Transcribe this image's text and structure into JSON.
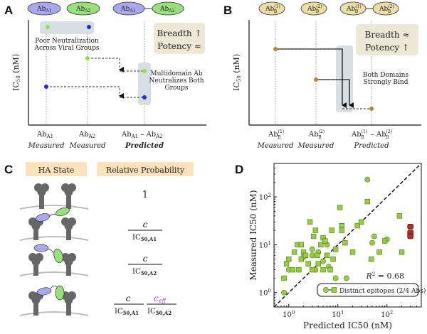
{
  "panel_labels": {
    "a": "A",
    "b": "B",
    "c": "C",
    "d": "D"
  },
  "panel_a": {
    "top_ab1": "Ab",
    "top_ab1_sub": "A1",
    "top_ab2": "Ab",
    "top_ab2_sub": "A2",
    "top_ab3a": "Ab",
    "top_ab3a_sub": "A1",
    "top_ab3b": "Ab",
    "top_ab3b_sub": "A2",
    "ylabel_main": "IC",
    "ylabel_sub": "50",
    "ylabel_unit": " (nM)",
    "box_title": "Breadth ↑",
    "box_sub": "Potency ≈",
    "note1_l1": "Poor Neutralization",
    "note1_l2": "Across Viral Groups",
    "note2_l1": "Multidomain Ab",
    "note2_l2": "Neutralizes Both",
    "note2_l3": "Groups",
    "x1": "Ab",
    "x1_sub": "A1",
    "x1_cap": "Measured",
    "x2": "Ab",
    "x2_sub": "A2",
    "x2_cap": "Measured",
    "x3a": "Ab",
    "x3a_sub": "A1",
    "x3_dash": " – ",
    "x3b": "Ab",
    "x3b_sub": "A2",
    "x3_cap": "Predicted"
  },
  "panel_b": {
    "top_ab1": "Ab",
    "top_ab1_sup": "(1)",
    "top_ab1_sub": "B",
    "top_ab2": "Ab",
    "top_ab2_sup": "(2)",
    "top_ab2_sub": "B",
    "top_ab3a": "Ab",
    "top_ab3a_sup": "(1)",
    "top_ab3a_sub": "B",
    "top_ab3b": "Ab",
    "top_ab3b_sup": "(2)",
    "top_ab3b_sub": "B",
    "ylabel_main": "IC",
    "ylabel_sub": "50",
    "ylabel_unit": " (nM)",
    "box_title": "Breadth ≈",
    "box_sub": "Potency ↑",
    "note_l1": "Both Domains",
    "note_l2": "Strongly Bind",
    "x1": "Ab",
    "x1_sup": "(1)",
    "x1_sub": "B",
    "x1_cap": "Measured",
    "x2": "Ab",
    "x2_sup": "(2)",
    "x2_sub": "B",
    "x2_cap": "Measured",
    "x3a": "Ab",
    "x3a_sup": "(1)",
    "x3a_sub": "B",
    "x3_dash": " – ",
    "x3b": "Ab",
    "x3b_sup": "(2)",
    "x3b_sub": "B",
    "x3_cap": "Predicted"
  },
  "panel_c": {
    "col1_header": "HA State",
    "col2_header": "Relative Probability",
    "row1": "1",
    "row2_num": "c",
    "row2_den": "IC",
    "row2_den_sub": "50,A1",
    "row3_num": "c",
    "row3_den": "IC",
    "row3_den_sub": "50,A2",
    "row4_num1": "c",
    "row4_den1": "IC",
    "row4_den1_sub": "50,A1",
    "row4_num2": "c",
    "row4_num2_sub": "eff",
    "row4_den2": "IC",
    "row4_den2_sub": "50,A2"
  },
  "colors": {
    "blue_ab": "#a9a8ef",
    "green_ab": "#98e07a",
    "yellow_ab": "#ecdfa6",
    "gray_box": "#d8dfe2",
    "tan_box": "#ede8d6",
    "header_bg": "#fbe2bd",
    "blue_dot": "#2a2ad0",
    "green_dot": "#8ee04c",
    "gold_dot": "#b8872a",
    "scatter_green": "#98cc44",
    "scatter_red": "#b52a24",
    "purple": "#b03ad8"
  },
  "chart_data": {
    "type": "scatter",
    "xlabel": "Predicted IC50 (nM)",
    "ylabel": "Measured IC50 (nM)",
    "xscale": "log",
    "yscale": "log",
    "xlim": [
      0.5,
      500
    ],
    "ylim": [
      0.5,
      500
    ],
    "x_ticks": [
      "10^0",
      "10^1",
      "10^2"
    ],
    "y_ticks": [
      "10^0",
      "10^1",
      "10^2"
    ],
    "annotation": "R² = 0.68",
    "annotation_r": "R",
    "annotation_sup": "2",
    "annotation_val": " = 0.68",
    "legend": "Distinct epitopes (2/4 Abs)",
    "reference_line": "y = x",
    "series": [
      {
        "name": "circles",
        "marker": "circle",
        "color": "#98cc44",
        "points": [
          [
            0.8,
            1.0
          ],
          [
            3.5,
            3.0
          ],
          [
            5.0,
            4.5
          ],
          [
            6.0,
            10.0
          ],
          [
            6.5,
            3.5
          ],
          [
            4.0,
            7.0
          ],
          [
            3.0,
            6.0
          ],
          [
            2.0,
            5.5
          ],
          [
            3.0,
            8.0
          ],
          [
            15,
            2.0
          ],
          [
            40,
            230
          ],
          [
            9,
            2.0
          ],
          [
            100,
            13
          ],
          [
            50,
            11
          ],
          [
            55,
            15
          ],
          [
            1.0,
            3.0
          ]
        ]
      },
      {
        "name": "squares",
        "marker": "square",
        "color": "#98cc44",
        "points": [
          [
            0.8,
            2.0
          ],
          [
            0.9,
            4.0
          ],
          [
            1.0,
            5.0
          ],
          [
            1.2,
            3.0
          ],
          [
            1.3,
            7.0
          ],
          [
            1.5,
            10.0
          ],
          [
            1.6,
            3.0
          ],
          [
            1.8,
            5.0
          ],
          [
            2.0,
            7.0
          ],
          [
            2.2,
            6.0
          ],
          [
            2.5,
            4.0
          ],
          [
            2.7,
            30.0
          ],
          [
            3.0,
            3.0
          ],
          [
            3.2,
            15.0
          ],
          [
            3.5,
            20.0
          ],
          [
            3.8,
            6.0
          ],
          [
            4.0,
            4.0
          ],
          [
            4.5,
            10.0
          ],
          [
            5.0,
            14.0
          ],
          [
            5.5,
            12.0
          ],
          [
            6.0,
            6.0
          ],
          [
            7.0,
            3.0
          ],
          [
            7.5,
            20.0
          ],
          [
            8.0,
            5.0
          ],
          [
            9.0,
            8.0
          ],
          [
            11,
            60
          ],
          [
            12,
            25.0
          ],
          [
            14,
            11.0
          ],
          [
            20,
            7.0
          ],
          [
            25,
            25.0
          ],
          [
            30,
            30.0
          ],
          [
            40,
            80.0
          ],
          [
            48,
            5.0
          ],
          [
            70,
            7.0
          ],
          [
            90,
            12.0
          ],
          [
            180,
            40.0
          ],
          [
            200,
            7.0
          ],
          [
            12,
            20.0
          ],
          [
            1.8,
            10.0
          ],
          [
            5.0,
            3.0
          ]
        ]
      },
      {
        "name": "red",
        "marker": "square",
        "color": "#b52a24",
        "points": [
          [
            300,
            24
          ],
          [
            300,
            18
          ],
          [
            300,
            15
          ]
        ]
      }
    ]
  }
}
